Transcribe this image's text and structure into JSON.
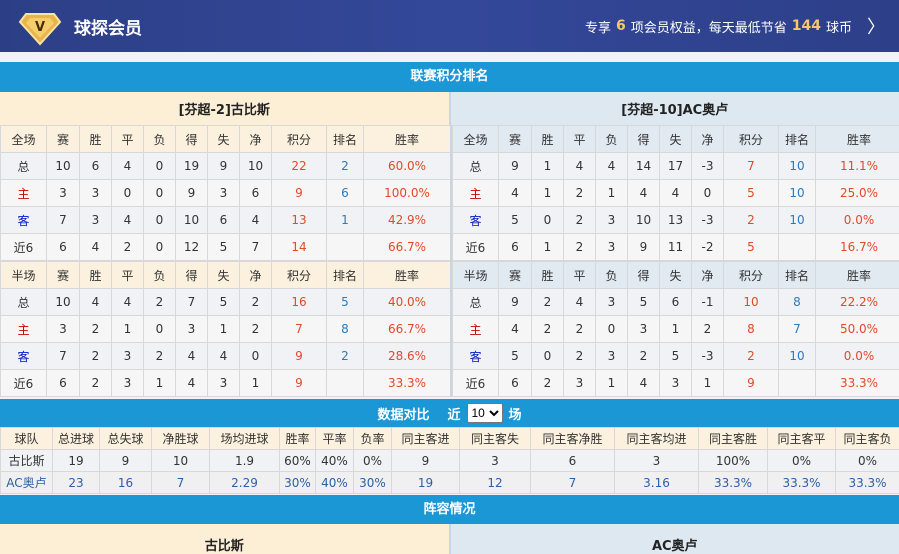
{
  "header": {
    "brand": "球探会员",
    "promo_prefix": "专享",
    "promo_count": "6",
    "promo_mid": "项会员权益，每天最低节省",
    "promo_coins": "144",
    "promo_suffix": "球币",
    "logo_letter": "V"
  },
  "standings": {
    "title": "联赛积分排名",
    "home_team": "[芬超-2]古比斯",
    "away_team": "[芬超-10]AC奥卢",
    "cols": [
      "赛",
      "胜",
      "平",
      "负",
      "得",
      "失",
      "净",
      "积分",
      "排名",
      "胜率"
    ],
    "tables": [
      {
        "side": "home",
        "label": "全场",
        "rows": [
          [
            "总",
            "10",
            "6",
            "4",
            "0",
            "19",
            "9",
            "10",
            "22",
            "2",
            "60.0%"
          ],
          [
            "主",
            "3",
            "3",
            "0",
            "0",
            "9",
            "3",
            "6",
            "9",
            "6",
            "100.0%"
          ],
          [
            "客",
            "7",
            "3",
            "4",
            "0",
            "10",
            "6",
            "4",
            "13",
            "1",
            "42.9%"
          ],
          [
            "近6",
            "6",
            "4",
            "2",
            "0",
            "12",
            "5",
            "7",
            "14",
            "",
            "66.7%"
          ]
        ]
      },
      {
        "side": "away",
        "label": "全场",
        "rows": [
          [
            "总",
            "9",
            "1",
            "4",
            "4",
            "14",
            "17",
            "-3",
            "7",
            "10",
            "11.1%"
          ],
          [
            "主",
            "4",
            "1",
            "2",
            "1",
            "4",
            "4",
            "0",
            "5",
            "10",
            "25.0%"
          ],
          [
            "客",
            "5",
            "0",
            "2",
            "3",
            "10",
            "13",
            "-3",
            "2",
            "10",
            "0.0%"
          ],
          [
            "近6",
            "6",
            "1",
            "2",
            "3",
            "9",
            "11",
            "-2",
            "5",
            "",
            "16.7%"
          ]
        ]
      },
      {
        "side": "home",
        "label": "半场",
        "rows": [
          [
            "总",
            "10",
            "4",
            "4",
            "2",
            "7",
            "5",
            "2",
            "16",
            "5",
            "40.0%"
          ],
          [
            "主",
            "3",
            "2",
            "1",
            "0",
            "3",
            "1",
            "2",
            "7",
            "8",
            "66.7%"
          ],
          [
            "客",
            "7",
            "2",
            "3",
            "2",
            "4",
            "4",
            "0",
            "9",
            "2",
            "28.6%"
          ],
          [
            "近6",
            "6",
            "2",
            "3",
            "1",
            "4",
            "3",
            "1",
            "9",
            "",
            "33.3%"
          ]
        ]
      },
      {
        "side": "away",
        "label": "半场",
        "rows": [
          [
            "总",
            "9",
            "2",
            "4",
            "3",
            "5",
            "6",
            "-1",
            "10",
            "8",
            "22.2%"
          ],
          [
            "主",
            "4",
            "2",
            "2",
            "0",
            "3",
            "1",
            "2",
            "8",
            "7",
            "50.0%"
          ],
          [
            "客",
            "5",
            "0",
            "2",
            "3",
            "2",
            "5",
            "-3",
            "2",
            "10",
            "0.0%"
          ],
          [
            "近6",
            "6",
            "2",
            "3",
            "1",
            "4",
            "3",
            "1",
            "9",
            "",
            "33.3%"
          ]
        ]
      }
    ]
  },
  "compare": {
    "title": "数据对比",
    "near": "近",
    "count": "10",
    "unit": "场",
    "headers": [
      "球队",
      "总进球",
      "总失球",
      "净胜球",
      "场均进球",
      "胜率",
      "平率",
      "负率",
      "同主客进",
      "同主客失",
      "同主客净胜",
      "同主客均进",
      "同主客胜",
      "同主客平",
      "同主客负"
    ],
    "rows": [
      [
        "古比斯",
        "19",
        "9",
        "10",
        "1.9",
        "60%",
        "40%",
        "0%",
        "9",
        "3",
        "6",
        "3",
        "100%",
        "0%",
        "0%"
      ],
      [
        "AC奥卢",
        "23",
        "16",
        "7",
        "2.29",
        "30%",
        "40%",
        "30%",
        "19",
        "12",
        "7",
        "3.16",
        "33.3%",
        "33.3%",
        "33.3%"
      ]
    ]
  },
  "lineup": {
    "title": "阵容情况",
    "home": "古比斯",
    "away": "AC奥卢"
  },
  "colors": {
    "accent": "#1b97d5",
    "header": "#2c3f86",
    "gold": "#f5c96b",
    "red": "#e04a2a",
    "blue": "#2a7ac0"
  }
}
